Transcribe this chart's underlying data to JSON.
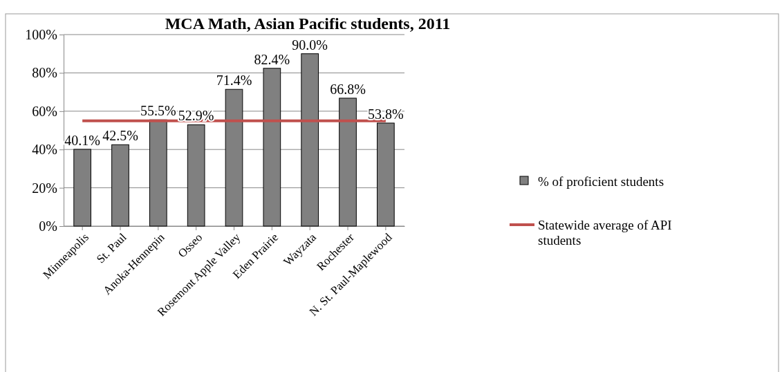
{
  "chart_data": {
    "type": "bar",
    "title": "MCA Math, Asian Pacific students, 2011",
    "categories": [
      "Minneapolis",
      "St. Paul",
      "Anoka-Hennepin",
      "Osseo",
      "Rosemont Apple Valley",
      "Eden Prairie",
      "Wayzata",
      "Rochester",
      "N. St. Paul-Maplewood"
    ],
    "series": [
      {
        "name": "% of proficient students",
        "color": "#808080",
        "values": [
          40.1,
          42.5,
          55.5,
          52.9,
          71.4,
          82.4,
          90.0,
          66.8,
          53.8
        ],
        "value_labels": [
          "40.1%",
          "42.5%",
          "55.5%",
          "52.9%",
          "71.4%",
          "82.4%",
          "90.0%",
          "66.8%",
          "53.8%"
        ]
      },
      {
        "name": "Statewide average of API students",
        "type": "line",
        "color": "#c0504d",
        "values": [
          55,
          55,
          55,
          55,
          55,
          55,
          55,
          55,
          55
        ]
      }
    ],
    "ylim": [
      0,
      100
    ],
    "yticks": [
      {
        "value": 0,
        "label": "0%"
      },
      {
        "value": 20,
        "label": "20%"
      },
      {
        "value": 40,
        "label": "40%"
      },
      {
        "value": 60,
        "label": "60%"
      },
      {
        "value": 80,
        "label": "80%"
      },
      {
        "value": 100,
        "label": "100%"
      }
    ],
    "grid": "y",
    "legend": "right",
    "marker": "none"
  }
}
